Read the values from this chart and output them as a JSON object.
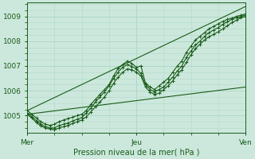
{
  "xlabel": "Pression niveau de la mer( hPa )",
  "bg_color": "#cce8dc",
  "grid_color": "#b0d8c8",
  "line_color": "#1a5c1a",
  "xlim": [
    0,
    48
  ],
  "ylim": [
    1004.3,
    1009.55
  ],
  "yticks": [
    1005,
    1006,
    1007,
    1008,
    1009
  ],
  "xtick_labels": [
    "Mer",
    "Jeu",
    "Ven"
  ],
  "xtick_positions": [
    0,
    24,
    48
  ],
  "lines": [
    {
      "x": [
        0,
        1,
        2,
        3,
        4,
        5,
        6,
        7,
        8,
        9,
        10,
        11,
        12,
        13,
        14,
        15,
        16,
        17,
        18,
        19,
        20,
        21,
        22,
        23,
        24,
        25,
        26,
        27,
        28,
        29,
        30,
        31,
        32,
        33,
        34,
        35,
        36,
        37,
        38,
        39,
        40,
        41,
        42,
        43,
        44,
        45,
        46,
        47,
        48
      ],
      "y": [
        1005.2,
        1005.05,
        1004.9,
        1004.75,
        1004.65,
        1004.6,
        1004.65,
        1004.75,
        1004.82,
        1004.88,
        1004.93,
        1005.0,
        1005.05,
        1005.2,
        1005.45,
        1005.65,
        1005.85,
        1006.05,
        1006.25,
        1006.6,
        1006.9,
        1007.05,
        1007.2,
        1007.1,
        1006.95,
        1007.0,
        1006.3,
        1006.15,
        1006.05,
        1006.2,
        1006.35,
        1006.5,
        1006.75,
        1007.0,
        1007.2,
        1007.55,
        1007.8,
        1008.05,
        1008.2,
        1008.35,
        1008.5,
        1008.6,
        1008.7,
        1008.8,
        1008.88,
        1008.93,
        1009.0,
        1009.05,
        1009.1
      ],
      "marker": true
    },
    {
      "x": [
        0,
        1,
        2,
        3,
        4,
        5,
        6,
        7,
        8,
        9,
        10,
        11,
        12,
        13,
        14,
        15,
        16,
        17,
        18,
        19,
        20,
        21,
        22,
        23,
        24,
        25,
        26,
        27,
        28,
        29,
        30,
        31,
        32,
        33,
        34,
        35,
        36,
        37,
        38,
        39,
        40,
        41,
        42,
        43,
        44,
        45,
        46,
        47,
        48
      ],
      "y": [
        1005.1,
        1004.95,
        1004.8,
        1004.65,
        1004.55,
        1004.5,
        1004.5,
        1004.6,
        1004.65,
        1004.7,
        1004.78,
        1004.85,
        1004.92,
        1005.1,
        1005.3,
        1005.55,
        1005.75,
        1005.95,
        1006.2,
        1006.5,
        1006.75,
        1006.95,
        1007.05,
        1006.98,
        1006.88,
        1006.7,
        1006.25,
        1006.05,
        1005.95,
        1006.05,
        1006.15,
        1006.35,
        1006.55,
        1006.8,
        1007.0,
        1007.35,
        1007.6,
        1007.85,
        1008.0,
        1008.2,
        1008.35,
        1008.45,
        1008.55,
        1008.68,
        1008.78,
        1008.88,
        1008.95,
        1009.0,
        1009.05
      ],
      "marker": true
    },
    {
      "x": [
        0,
        1,
        2,
        3,
        4,
        5,
        6,
        7,
        8,
        9,
        10,
        11,
        12,
        13,
        14,
        15,
        16,
        17,
        18,
        19,
        20,
        21,
        22,
        23,
        24,
        25,
        26,
        27,
        28,
        29,
        30,
        31,
        32,
        33,
        34,
        35,
        36,
        37,
        38,
        39,
        40,
        41,
        42,
        43,
        44,
        45,
        46,
        47,
        48
      ],
      "y": [
        1005.05,
        1004.9,
        1004.72,
        1004.58,
        1004.5,
        1004.45,
        1004.42,
        1004.5,
        1004.55,
        1004.6,
        1004.68,
        1004.75,
        1004.82,
        1004.95,
        1005.15,
        1005.35,
        1005.55,
        1005.75,
        1006.0,
        1006.3,
        1006.55,
        1006.75,
        1006.88,
        1006.85,
        1006.75,
        1006.6,
        1006.15,
        1005.95,
        1005.85,
        1005.9,
        1006.05,
        1006.2,
        1006.4,
        1006.65,
        1006.85,
        1007.15,
        1007.45,
        1007.7,
        1007.88,
        1008.05,
        1008.18,
        1008.28,
        1008.38,
        1008.5,
        1008.62,
        1008.75,
        1008.85,
        1008.95,
        1009.0
      ],
      "marker": true
    },
    {
      "x": [
        0,
        48
      ],
      "y": [
        1005.2,
        1009.4
      ],
      "marker": false
    },
    {
      "x": [
        0,
        48
      ],
      "y": [
        1005.05,
        1006.15
      ],
      "marker": false
    }
  ]
}
